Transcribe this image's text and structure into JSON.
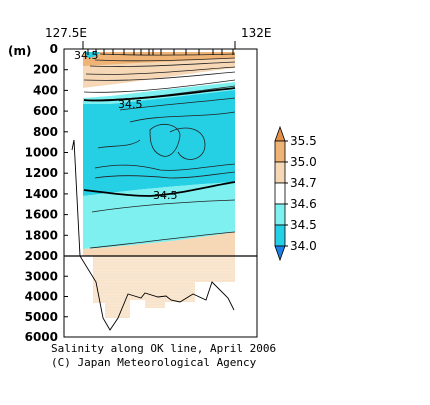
{
  "chart_data": {
    "type": "contour",
    "title": "",
    "lon_labels": [
      {
        "text": "127.5E",
        "lon": 127.5
      },
      {
        "text": "132E",
        "lon": 132.0
      }
    ],
    "y_unit_label": "(m)",
    "y_ticks_upper": [
      0,
      200,
      400,
      600,
      800,
      1000,
      1200,
      1400,
      1600,
      1800,
      2000
    ],
    "y_ticks_lower": [
      3000,
      4000,
      5000,
      6000
    ],
    "ylim_upper": [
      0,
      2000
    ],
    "ylim_lower": [
      2000,
      6000
    ],
    "colorbar": {
      "levels": [
        "35.5",
        "35.0",
        "34.7",
        "34.6",
        "34.5",
        "34.0"
      ],
      "colors": [
        "#e3904a",
        "#efb475",
        "#f6d8b7",
        "#ffffff",
        "#7ef0ef",
        "#25cfe4",
        "#1b80e8"
      ]
    },
    "contour_labels": [
      {
        "text": "34.5",
        "lon": 127.85,
        "depth": 30
      },
      {
        "text": "34.5",
        "lon": 128.6,
        "depth": 430
      },
      {
        "text": "34.5",
        "lon": 129.7,
        "depth": 1460
      }
    ],
    "layers": [
      {
        "name": "surface-salty",
        "value": "35.0",
        "depth_top": 0,
        "depth_bottom_mid": 320
      },
      {
        "name": "upper-mid",
        "value": "34.6",
        "depth_bottom_mid": 420
      },
      {
        "name": "intermediate-fresh",
        "value": "34.5",
        "depth_bottom_mid": 1400
      },
      {
        "name": "deep",
        "value": "34.6",
        "depth_bottom_mid": 1850
      }
    ]
  },
  "caption": {
    "line1": "Salinity along OK line, April 2006",
    "line2": "(C) Japan Meteorological Agency"
  }
}
